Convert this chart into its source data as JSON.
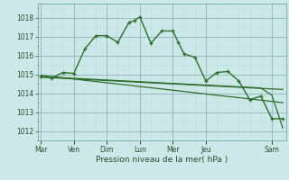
{
  "background_color": "#cce8e8",
  "grid_color_major": "#99bbbb",
  "grid_color_minor": "#bbdddd",
  "line_color": "#2d6e2d",
  "title": "Pression niveau de la mer( hPa )",
  "ylim": [
    1011.5,
    1018.75
  ],
  "yticks": [
    1012,
    1013,
    1014,
    1015,
    1016,
    1017,
    1018
  ],
  "xlim": [
    -0.15,
    11.15
  ],
  "xtick_labels": [
    "Mar",
    "Ven",
    "Dim",
    "Lun",
    "Mer",
    "Jeu",
    "Sam"
  ],
  "xtick_positions": [
    0,
    1.5,
    3,
    4.5,
    6,
    7.5,
    10.5
  ],
  "minor_xtick_positions": [
    0,
    0.5,
    1,
    1.5,
    2,
    2.5,
    3,
    3.5,
    4,
    4.5,
    5,
    5.5,
    6,
    6.5,
    7,
    7.5,
    8,
    9,
    9.5,
    10,
    10.5,
    11
  ],
  "vline_positions": [
    0,
    1.5,
    3,
    4.5,
    6,
    7.5,
    10.5
  ],
  "series1_x": [
    0,
    0.5,
    1,
    1.5,
    2,
    2.5,
    3,
    3.5,
    4,
    4.25,
    4.5,
    5,
    5.5,
    6,
    6.25,
    6.5,
    7,
    7.5,
    8,
    8.5,
    9,
    9.5,
    10,
    10.5,
    11
  ],
  "series1_y": [
    1014.9,
    1014.8,
    1015.1,
    1015.05,
    1016.35,
    1017.05,
    1017.05,
    1016.7,
    1017.75,
    1017.85,
    1018.05,
    1016.65,
    1017.3,
    1017.3,
    1016.7,
    1016.1,
    1015.9,
    1014.65,
    1015.1,
    1015.15,
    1014.65,
    1013.65,
    1013.85,
    1012.65,
    1012.65
  ],
  "series2_x": [
    0,
    11
  ],
  "series2_y": [
    1014.95,
    1013.5
  ],
  "series3_x": [
    0,
    11
  ],
  "series3_y": [
    1014.85,
    1014.2
  ],
  "series4_x": [
    0.5,
    1,
    1.5,
    2,
    2.5,
    3,
    3.5,
    4,
    4.5,
    5,
    5.5,
    6,
    6.5,
    7,
    7.5,
    8,
    8.5,
    9,
    9.5,
    10,
    10.5,
    11
  ],
  "series4_y": [
    1014.85,
    1014.82,
    1014.79,
    1014.76,
    1014.73,
    1014.7,
    1014.67,
    1014.64,
    1014.61,
    1014.58,
    1014.55,
    1014.52,
    1014.49,
    1014.46,
    1014.43,
    1014.4,
    1014.37,
    1014.34,
    1014.31,
    1014.28,
    1013.9,
    1012.15
  ]
}
